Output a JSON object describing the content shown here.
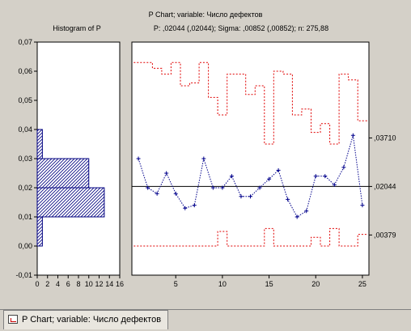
{
  "window": {
    "tab_label": "P Chart; variable:  Число дефектов"
  },
  "chart_data": {
    "type": "line",
    "title": "P Chart; variable:  Число дефектов",
    "stats_label": "P: ,02044 (,02044); Sigma: ,00852 (,00852); n: 275,88",
    "histogram": {
      "title": "Histogram of P",
      "xlim": [
        0,
        16
      ],
      "x_ticks": [
        "0",
        "2",
        "4",
        "6",
        "8",
        "10",
        "12",
        "14",
        "16"
      ],
      "bins": [
        {
          "from": -0.01,
          "to": 0.0,
          "count": 0
        },
        {
          "from": 0.0,
          "to": 0.01,
          "count": 1
        },
        {
          "from": 0.01,
          "to": 0.02,
          "count": 13
        },
        {
          "from": 0.02,
          "to": 0.03,
          "count": 10
        },
        {
          "from": 0.03,
          "to": 0.04,
          "count": 1
        }
      ]
    },
    "y_axis": {
      "ylim": [
        -0.01,
        0.07
      ],
      "ticks": [
        "-0,01",
        "0,00",
        "0,01",
        "0,02",
        "0,03",
        "0,04",
        "0,05",
        "0,06",
        "0,07"
      ]
    },
    "x_axis": {
      "xlim": [
        0.3,
        25.7
      ],
      "ticks": [
        "5",
        "10",
        "15",
        "20",
        "25"
      ]
    },
    "center_line": 0.02044,
    "center_label": ",02044",
    "ucl_label": ",03710",
    "lcl_label": ",00379",
    "series": [
      {
        "values": [
          0.03,
          0.02,
          0.018,
          0.025,
          0.018,
          0.013,
          0.014,
          0.03,
          0.02,
          0.02,
          0.024,
          0.017,
          0.017,
          0.02,
          0.023,
          0.026,
          0.016,
          0.01,
          0.012,
          0.024,
          0.024,
          0.021,
          0.027,
          0.038,
          0.014
        ]
      }
    ],
    "ucl": [
      0.063,
      0.063,
      0.061,
      0.059,
      0.063,
      0.055,
      0.056,
      0.063,
      0.051,
      0.045,
      0.059,
      0.059,
      0.052,
      0.055,
      0.035,
      0.06,
      0.059,
      0.045,
      0.047,
      0.039,
      0.042,
      0.035,
      0.059,
      0.057,
      0.043
    ],
    "lcl": [
      0.0,
      0.0,
      0.0,
      0.0,
      0.0,
      0.0,
      0.0,
      0.0,
      0.0,
      0.005,
      0.0,
      0.0,
      0.0,
      0.0,
      0.006,
      0.0,
      0.0,
      0.0,
      0.0,
      0.003,
      0.0,
      0.006,
      0.0,
      0.0,
      0.004
    ],
    "colors": {
      "series": "#00008b",
      "limits": "#e00000",
      "center": "#000000",
      "bars": "#000080"
    }
  }
}
